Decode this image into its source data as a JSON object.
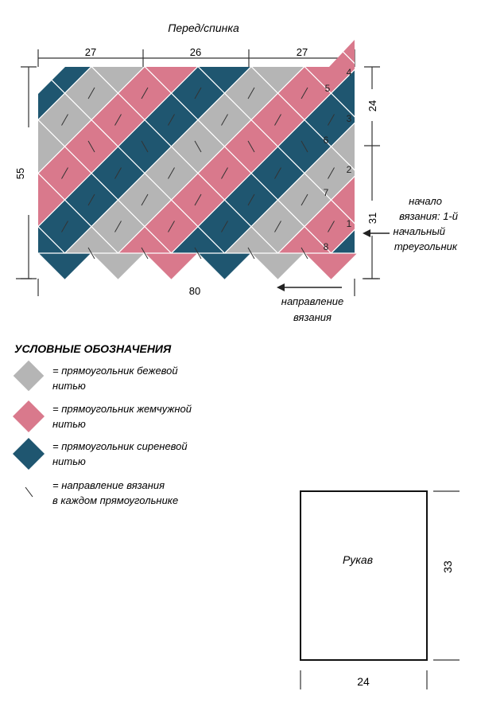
{
  "pattern": {
    "title": "Перед/спинка",
    "dim_top": [
      "27",
      "26",
      "27"
    ],
    "dim_bottom": "80",
    "dim_left": "55",
    "dim_right": [
      "24",
      "31"
    ],
    "start_note": [
      "начало",
      "вязания: 1-й",
      "начальный",
      "треугольник"
    ],
    "direction_note": [
      "направление",
      "вязания"
    ],
    "triangle_numbers": [
      "1",
      "2",
      "3",
      "4"
    ],
    "square_numbers": [
      "5",
      "6",
      "7",
      "8"
    ],
    "colors": {
      "beige": "#b5b5b5",
      "pearl": "#d9798c",
      "lilac": "#1f5670",
      "outline": "#ffffff"
    }
  },
  "legend": {
    "title": "УСЛОВНЫЕ ОБОЗНАЧЕНИЯ",
    "items": [
      {
        "icon": "gray-diamond-icon",
        "lines": [
          "= прямоугольник бежевой",
          "нитью"
        ]
      },
      {
        "icon": "pink-diamond-icon",
        "lines": [
          "= прямоугольник жемчужной",
          "нитью"
        ]
      },
      {
        "icon": "teal-diamond-icon",
        "lines": [
          "= прямоугольник сиреневой",
          "нитью"
        ]
      },
      {
        "icon": "direction-arrow-icon",
        "lines": [
          "= направление вязания",
          "в каждом прямоугольнике"
        ]
      }
    ]
  },
  "sleeve": {
    "label": "Рукав",
    "width": "24",
    "height": "33"
  }
}
